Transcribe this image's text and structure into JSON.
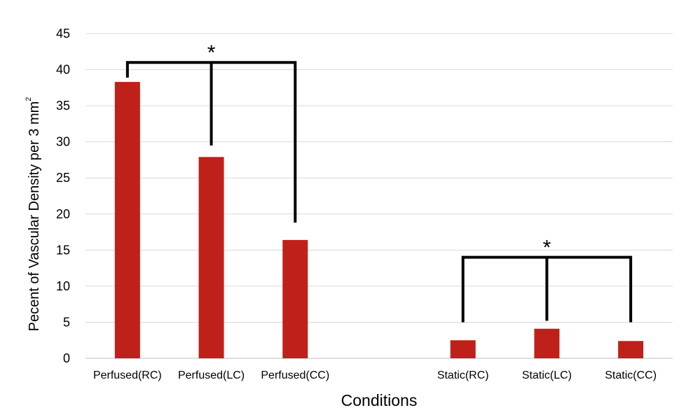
{
  "chart_data": {
    "type": "bar",
    "title": "",
    "xlabel": "Conditions",
    "ylabel": "Pecent of Vascular Density per 3 mm",
    "ylabel_superscript": "2",
    "ylim": [
      0,
      45
    ],
    "yticks": [
      0,
      5,
      10,
      15,
      20,
      25,
      30,
      35,
      40,
      45
    ],
    "grid": true,
    "bar_color": "#c0201a",
    "categories": [
      "Perfused(RC)",
      "Perfused(LC)",
      "Perfused(CC)",
      "",
      "Static(RC)",
      "Static(LC)",
      "Static(CC)"
    ],
    "values": [
      38.3,
      27.9,
      16.4,
      null,
      2.5,
      4.1,
      2.4
    ],
    "annotations": [
      {
        "text": "*",
        "type": "significance-bracket",
        "group": [
          "Perfused(RC)",
          "Perfused(LC)",
          "Perfused(CC)"
        ]
      },
      {
        "text": "*",
        "type": "significance-bracket",
        "group": [
          "Static(RC)",
          "Static(LC)",
          "Static(CC)"
        ]
      }
    ]
  }
}
